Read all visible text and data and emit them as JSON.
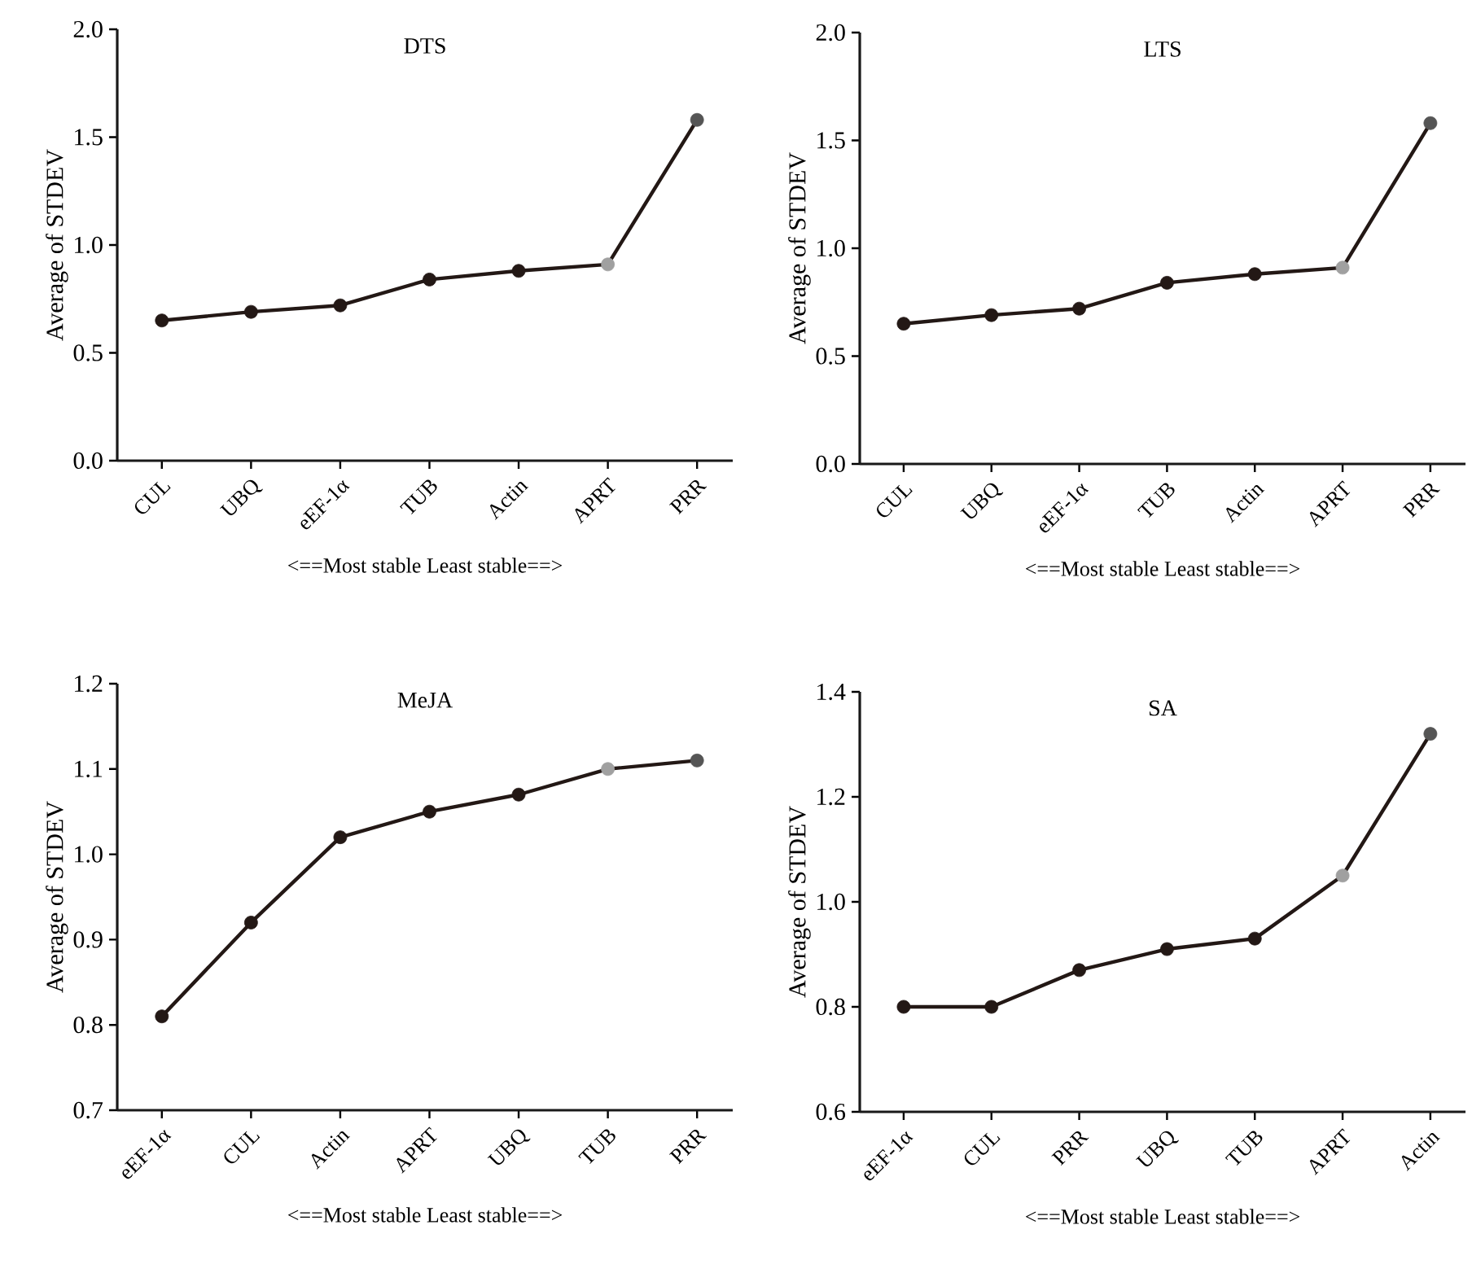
{
  "chart_data": [
    {
      "type": "line",
      "title": "DTS",
      "xlabel": "<==Most stable Least stable==>",
      "ylabel": "Average of STDEV",
      "categories": [
        "CUL",
        "UBQ",
        "eEF-1α",
        "TUB",
        "Actin",
        "APRT",
        "PRR"
      ],
      "series": [
        {
          "color": "#231815",
          "colors": [
            "#231815",
            "#231815",
            "#231815",
            "#231815",
            "#231815",
            "#a0a0a0",
            "#555555"
          ],
          "values": [
            0.65,
            0.69,
            0.72,
            0.84,
            0.88,
            0.91,
            1.58
          ]
        }
      ],
      "ylim": [
        0,
        2
      ],
      "yticks": [
        {
          "value": 0,
          "label": "0.0"
        },
        {
          "value": 0.5,
          "label": "0.5"
        },
        {
          "value": 1,
          "label": "1.0"
        },
        {
          "value": 1.5,
          "label": "1.5"
        },
        {
          "value": 2,
          "label": "2.0"
        }
      ],
      "marker": "circle",
      "line_style": "solid"
    },
    {
      "type": "line",
      "title": "LTS",
      "xlabel": "<==Most stable Least stable==>",
      "ylabel": "Average of STDEV",
      "categories": [
        "CUL",
        "UBQ",
        "eEF-1α",
        "TUB",
        "Actin",
        "APRT",
        "PRR"
      ],
      "series": [
        {
          "color": "#231815",
          "colors": [
            "#231815",
            "#231815",
            "#231815",
            "#231815",
            "#231815",
            "#a0a0a0",
            "#555555"
          ],
          "values": [
            0.65,
            0.69,
            0.72,
            0.84,
            0.88,
            0.91,
            1.58
          ]
        }
      ],
      "ylim": [
        0,
        2
      ],
      "yticks": [
        {
          "value": 0,
          "label": "0.0"
        },
        {
          "value": 0.5,
          "label": "0.5"
        },
        {
          "value": 1,
          "label": "1.0"
        },
        {
          "value": 1.5,
          "label": "1.5"
        },
        {
          "value": 2,
          "label": "2.0"
        }
      ],
      "marker": "circle",
      "line_style": "solid"
    },
    {
      "type": "line",
      "title": "MeJA",
      "xlabel": "<==Most stable Least stable==>",
      "ylabel": "Average of STDEV",
      "categories": [
        "eEF-1α",
        "CUL",
        "Actin",
        "APRT",
        "UBQ",
        "TUB",
        "PRR"
      ],
      "series": [
        {
          "color": "#231815",
          "colors": [
            "#231815",
            "#231815",
            "#231815",
            "#231815",
            "#231815",
            "#a0a0a0",
            "#555555"
          ],
          "values": [
            0.81,
            0.92,
            1.02,
            1.05,
            1.07,
            1.1,
            1.11
          ]
        }
      ],
      "ylim": [
        0.7,
        1.2
      ],
      "yticks": [
        {
          "value": 0.7,
          "label": "0.7"
        },
        {
          "value": 0.8,
          "label": "0.8"
        },
        {
          "value": 0.9,
          "label": "0.9"
        },
        {
          "value": 1,
          "label": "1.0"
        },
        {
          "value": 1.1,
          "label": "1.1"
        },
        {
          "value": 1.2,
          "label": "1.2"
        }
      ],
      "marker": "circle",
      "line_style": "solid"
    },
    {
      "type": "line",
      "title": "SA",
      "xlabel": "<==Most stable Least stable==>",
      "ylabel": "Average of STDEV",
      "categories": [
        "eEF-1α",
        "CUL",
        "PRR",
        "UBQ",
        "TUB",
        "APRT",
        "Actin"
      ],
      "series": [
        {
          "color": "#231815",
          "colors": [
            "#231815",
            "#231815",
            "#231815",
            "#231815",
            "#231815",
            "#a0a0a0",
            "#555555"
          ],
          "values": [
            0.8,
            0.8,
            0.87,
            0.91,
            0.93,
            1.05,
            1.32
          ]
        }
      ],
      "ylim": [
        0.6,
        1.4
      ],
      "yticks": [
        {
          "value": 0.6,
          "label": "0.6"
        },
        {
          "value": 0.8,
          "label": "0.8"
        },
        {
          "value": 1,
          "label": "1.0"
        },
        {
          "value": 1.2,
          "label": "1.2"
        },
        {
          "value": 1.4,
          "label": "1.4"
        }
      ],
      "marker": "circle",
      "line_style": "solid"
    }
  ]
}
